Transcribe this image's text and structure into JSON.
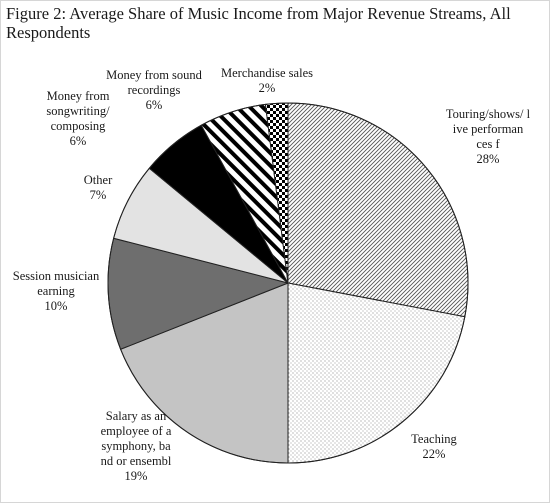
{
  "chart_data": {
    "type": "pie",
    "title": "Figure 2: Average Share of Music Income from Major Revenue Streams, All Respondents",
    "slices": [
      {
        "label": "Touring/shows/ live performances fees",
        "value": 28,
        "value_text": "28%",
        "color": "#ffffff",
        "pattern": "fine-diagonal-hatch"
      },
      {
        "label": "Teaching",
        "value": 22,
        "value_text": "22%",
        "color": "#ffffff",
        "pattern": "dots"
      },
      {
        "label": "Salary as an employee of a symphony, band or ensemble",
        "value": 19,
        "value_text": "19%",
        "color": "#c4c4c4",
        "pattern": "solid"
      },
      {
        "label": "Session musician earnings",
        "value": 10,
        "value_text": "10%",
        "color": "#6e6e6e",
        "pattern": "solid"
      },
      {
        "label": "Other",
        "value": 7,
        "value_text": "7%",
        "color": "#e3e3e3",
        "pattern": "solid"
      },
      {
        "label": "Money from songwriting/ composing",
        "value": 6,
        "value_text": "6%",
        "color": "#000000",
        "pattern": "solid"
      },
      {
        "label": "Money from sound recordings",
        "value": 6,
        "value_text": "6%",
        "color": "#ffffff",
        "pattern": "wide-diagonal-stripes"
      },
      {
        "label": "Merchandise sales",
        "value": 2,
        "value_text": "2%",
        "color": "#ffffff",
        "pattern": "checker"
      }
    ]
  }
}
